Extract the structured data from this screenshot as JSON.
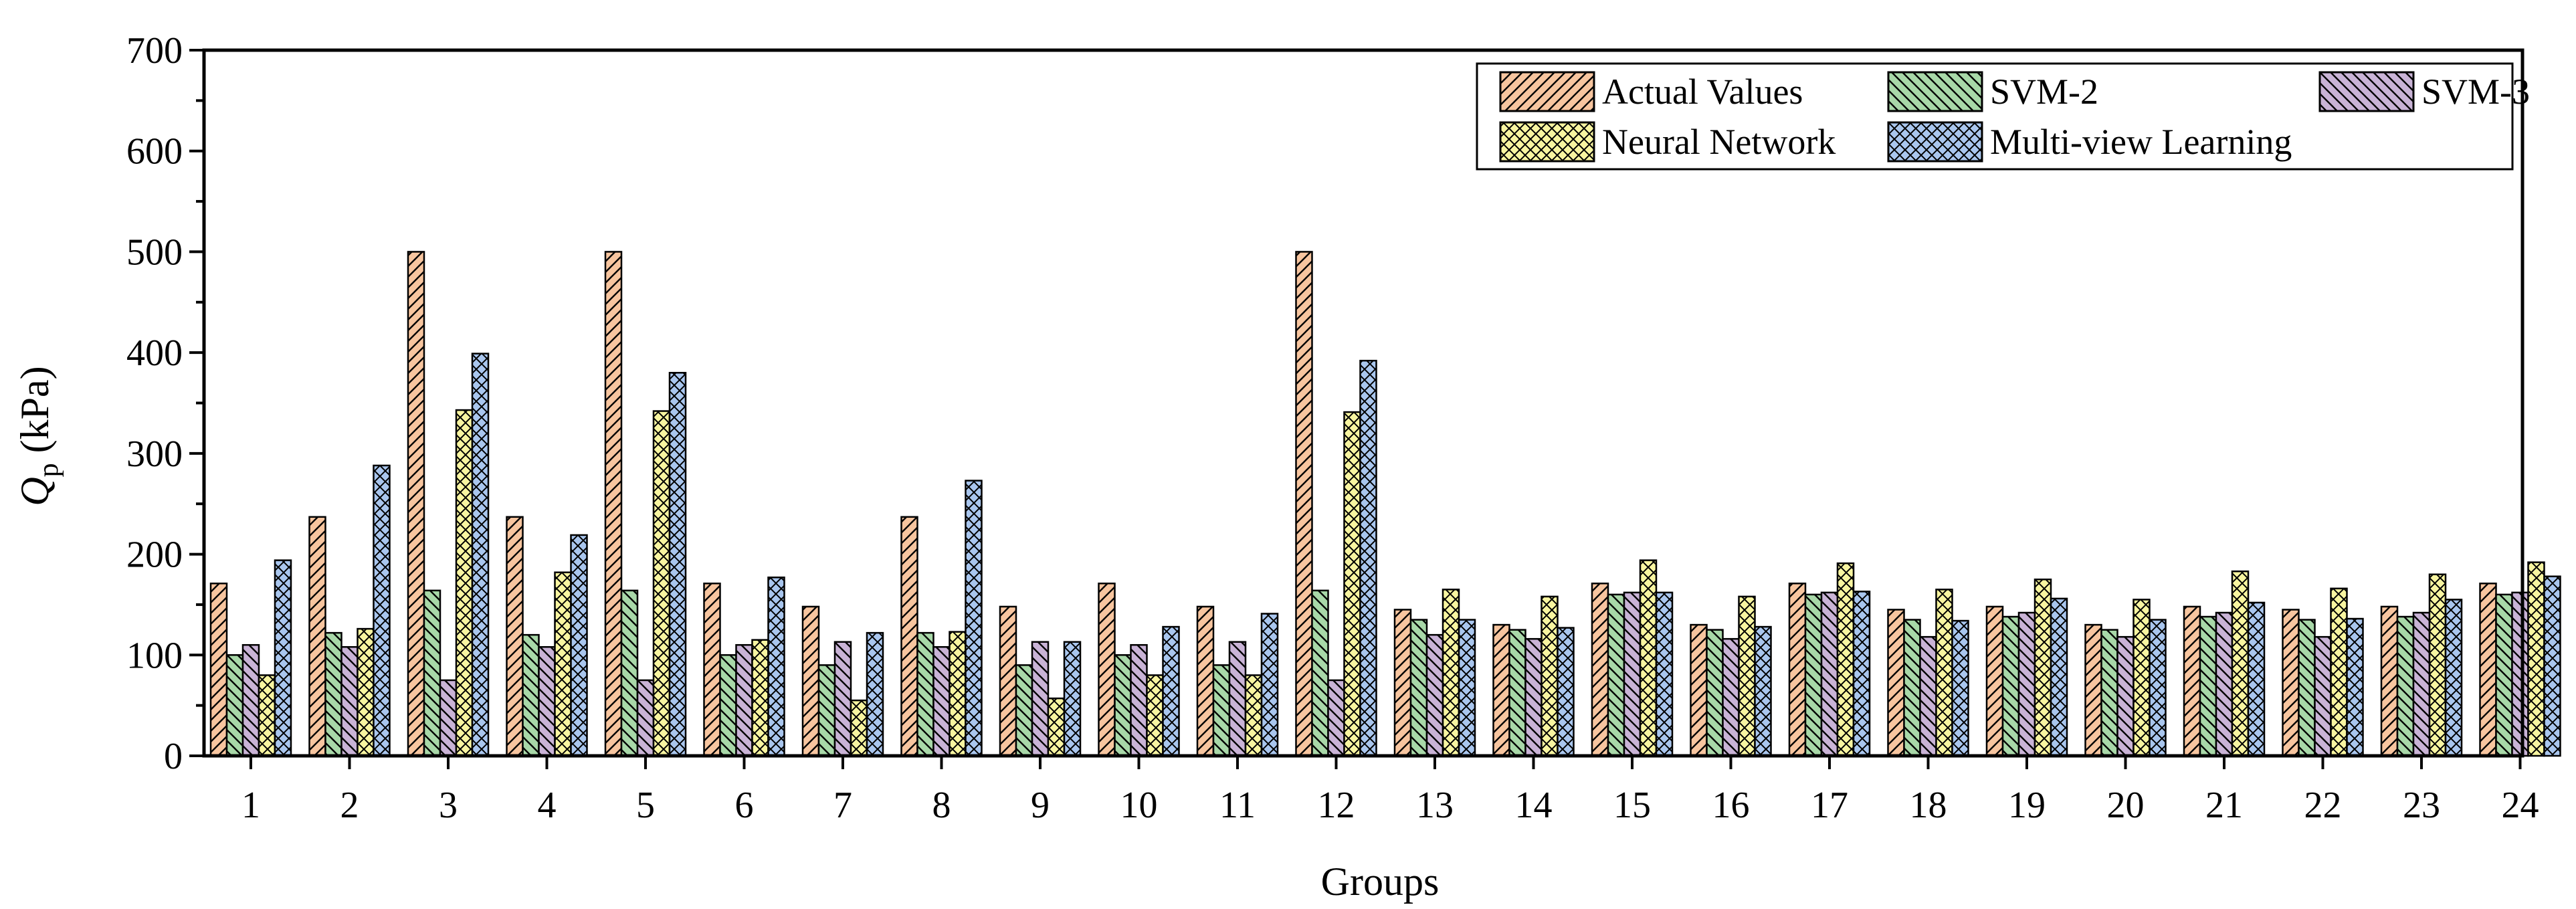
{
  "chart_data": {
    "type": "bar",
    "title": "",
    "xlabel": "Groups",
    "ylabel": {
      "symbol": "Q",
      "subscript": "p",
      "unit": " (kPa)"
    },
    "ylim": [
      0,
      700
    ],
    "yticks": [
      0,
      100,
      200,
      300,
      400,
      500,
      600,
      700
    ],
    "grid": false,
    "legend_position": "top-right",
    "categories": [
      "1",
      "2",
      "3",
      "4",
      "5",
      "6",
      "7",
      "8",
      "9",
      "10",
      "11",
      "12",
      "13",
      "14",
      "15",
      "16",
      "17",
      "18",
      "19",
      "20",
      "21",
      "22",
      "23",
      "24"
    ],
    "series": [
      {
        "name": "Actual Values",
        "color": "#f7c59f",
        "pattern": "diagonal",
        "values": [
          171,
          237,
          500,
          237,
          500,
          171,
          148,
          237,
          148,
          171,
          148,
          500,
          145,
          130,
          171,
          130,
          171,
          145,
          148,
          130,
          148,
          145,
          148,
          171
        ]
      },
      {
        "name": "SVM-2",
        "color": "#a8d8a8",
        "pattern": "back-diagonal",
        "values": [
          100,
          122,
          164,
          120,
          164,
          100,
          90,
          122,
          90,
          100,
          90,
          164,
          135,
          125,
          160,
          125,
          160,
          135,
          138,
          125,
          138,
          135,
          138,
          160
        ]
      },
      {
        "name": "SVM-3",
        "color": "#c9b3d6",
        "pattern": "back-diagonal",
        "values": [
          110,
          108,
          75,
          108,
          75,
          110,
          113,
          108,
          113,
          110,
          113,
          75,
          120,
          116,
          162,
          116,
          162,
          118,
          142,
          118,
          142,
          118,
          142,
          162
        ]
      },
      {
        "name": "Neural Network",
        "color": "#f8f5a0",
        "pattern": "crosshatch",
        "values": [
          80,
          126,
          343,
          182,
          342,
          115,
          55,
          123,
          57,
          80,
          80,
          341,
          165,
          158,
          194,
          158,
          191,
          165,
          175,
          155,
          183,
          166,
          180,
          192
        ]
      },
      {
        "name": "Multi-view Learning",
        "color": "#a9c6ee",
        "pattern": "crosshatch",
        "values": [
          194,
          288,
          399,
          219,
          380,
          177,
          122,
          273,
          113,
          128,
          141,
          392,
          135,
          127,
          162,
          128,
          163,
          134,
          156,
          135,
          152,
          136,
          155,
          178
        ]
      }
    ]
  }
}
